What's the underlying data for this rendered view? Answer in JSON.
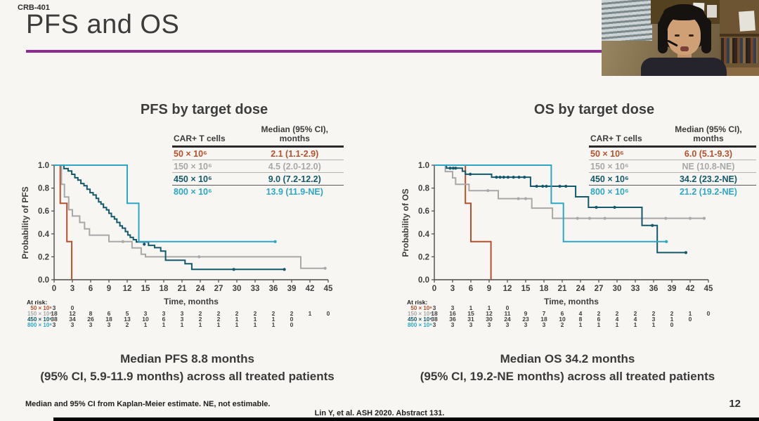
{
  "slide": {
    "code": "CRB-401",
    "title": "PFS and OS",
    "footnote": "Median and 95% CI from Kaplan-Meier estimate. NE, not estimable.",
    "citation": "Lin Y, et al. ASH 2020. Abstract 131.",
    "page_number": "12",
    "accent_color": "#8d2b92"
  },
  "charts": [
    {
      "title": "PFS by target dose",
      "legend": {
        "col1_header": "CAR+ T cells",
        "col2_header": "Median (95% CI),\nmonths",
        "rows": [
          {
            "dose": "50 × 10⁶",
            "median": "2.1 (1.1-2.9)",
            "color": "#b5512e",
            "bold": false
          },
          {
            "dose": "150 × 10⁶",
            "median": "4.5 (2.0-12.0)",
            "color": "#a8a8a8",
            "bold": false
          },
          {
            "dose": "450 × 10⁶",
            "median": "9.0 (7.2-12.2)",
            "color": "#14596b",
            "bold": true
          },
          {
            "dose": "800 × 10⁶",
            "median": "13.9 (11.9-NE)",
            "color": "#2ea7c6",
            "bold": false
          }
        ]
      },
      "summary": [
        "Median PFS 8.8 months",
        "(95% CI, 5.9-11.9 months) across all treated patients"
      ],
      "at_risk": {
        "label": "At risk:",
        "rows": [
          {
            "dose": "50 × 10⁶",
            "counts": [
              3,
              0
            ]
          },
          {
            "dose": "150 × 10⁶",
            "counts": [
              18,
              12,
              8,
              6,
              5,
              3,
              3,
              3,
              2,
              2,
              2,
              2,
              2,
              2,
              1,
              0
            ]
          },
          {
            "dose": "450 × 10⁶",
            "counts": [
              38,
              34,
              26,
              18,
              13,
              10,
              6,
              3,
              2,
              2,
              1,
              1,
              1,
              0
            ]
          },
          {
            "dose": "800 × 10⁶",
            "counts": [
              3,
              3,
              3,
              3,
              2,
              1,
              1,
              1,
              1,
              1,
              1,
              1,
              1,
              0
            ]
          }
        ]
      },
      "chart_data": {
        "type": "line",
        "subtype": "kaplan-meier-step",
        "title": "PFS by target dose",
        "xlabel": "Time, months",
        "ylabel": "Probability of PFS",
        "xlim": [
          0,
          45
        ],
        "xtick_step": 3,
        "ylim": [
          0,
          1.0
        ],
        "ytick_step": 0.2,
        "grid": false,
        "series": [
          {
            "name": "50 × 10⁶",
            "color": "#b5512e",
            "points": [
              [
                0,
                1
              ],
              [
                1.0,
                0.667
              ],
              [
                2.1,
                0.333
              ],
              [
                2.9,
                0
              ]
            ],
            "end_x": 2.9,
            "censors": []
          },
          {
            "name": "150 × 10⁶",
            "color": "#a8a8a8",
            "points": [
              [
                0,
                1
              ],
              [
                1.2,
                0.833
              ],
              [
                1.7,
                0.722
              ],
              [
                2.4,
                0.611
              ],
              [
                3.0,
                0.556
              ],
              [
                4.2,
                0.5
              ],
              [
                5.0,
                0.444
              ],
              [
                5.8,
                0.389
              ],
              [
                9.0,
                0.333
              ],
              [
                12.8,
                0.278
              ],
              [
                14.3,
                0.222
              ],
              [
                15.0,
                0.2
              ],
              [
                40.5,
                0.1
              ]
            ],
            "end_x": 44.7,
            "censors": [
              [
                11.3,
                0.333
              ],
              [
                23.8,
                0.2
              ],
              [
                44.5,
                0.1
              ]
            ]
          },
          {
            "name": "450 × 10⁶",
            "color": "#14596b",
            "points": [
              [
                0,
                1
              ],
              [
                1.6,
                0.97
              ],
              [
                2.3,
                0.95
              ],
              [
                2.9,
                0.92
              ],
              [
                3.4,
                0.89
              ],
              [
                3.9,
                0.87
              ],
              [
                4.4,
                0.84
              ],
              [
                4.9,
                0.82
              ],
              [
                5.4,
                0.79
              ],
              [
                5.9,
                0.76
              ],
              [
                6.4,
                0.74
              ],
              [
                6.9,
                0.71
              ],
              [
                7.3,
                0.68
              ],
              [
                7.7,
                0.66
              ],
              [
                8.1,
                0.63
              ],
              [
                8.6,
                0.61
              ],
              [
                9.0,
                0.58
              ],
              [
                9.4,
                0.55
              ],
              [
                9.9,
                0.53
              ],
              [
                10.3,
                0.5
              ],
              [
                10.8,
                0.47
              ],
              [
                11.2,
                0.45
              ],
              [
                11.7,
                0.42
              ],
              [
                12.1,
                0.39
              ],
              [
                12.5,
                0.37
              ],
              [
                13.0,
                0.35
              ],
              [
                13.5,
                0.33
              ],
              [
                15.5,
                0.3
              ],
              [
                16.5,
                0.28
              ],
              [
                17.5,
                0.25
              ],
              [
                18.3,
                0.17
              ],
              [
                21.5,
                0.14
              ],
              [
                22.6,
                0.09
              ]
            ],
            "end_x": 38.0,
            "censors": [
              [
                14.8,
                0.31
              ],
              [
                29.5,
                0.09
              ],
              [
                37.8,
                0.09
              ]
            ]
          },
          {
            "name": "800 × 10⁶",
            "color": "#2ea7c6",
            "points": [
              [
                0,
                1
              ],
              [
                12.0,
                0.667
              ],
              [
                13.9,
                0.333
              ]
            ],
            "end_x": 36.5,
            "censors": [
              [
                36.3,
                0.333
              ]
            ]
          }
        ]
      }
    },
    {
      "title": "OS by target dose",
      "legend": {
        "col1_header": "CAR+ T cells",
        "col2_header": "Median (95% CI),\nmonths",
        "rows": [
          {
            "dose": "50 × 10⁶",
            "median": "6.0 (5.1-9.3)",
            "color": "#b5512e",
            "bold": false
          },
          {
            "dose": "150 × 10⁶",
            "median": "NE (10.8-NE)",
            "color": "#a8a8a8",
            "bold": false
          },
          {
            "dose": "450 × 10⁶",
            "median": "34.2 (23.2-NE)",
            "color": "#14596b",
            "bold": true
          },
          {
            "dose": "800 × 10⁶",
            "median": "21.2 (19.2-NE)",
            "color": "#2ea7c6",
            "bold": false
          }
        ]
      },
      "summary": [
        "Median OS 34.2 months",
        "(95% CI, 19.2-NE months) across all treated patients"
      ],
      "at_risk": {
        "label": "At risk:",
        "rows": [
          {
            "dose": "50 × 10⁶",
            "counts": [
              3,
              3,
              1,
              1,
              0
            ]
          },
          {
            "dose": "150 × 10⁶",
            "counts": [
              18,
              16,
              15,
              12,
              11,
              9,
              7,
              6,
              4,
              2,
              2,
              2,
              2,
              2,
              1,
              0
            ]
          },
          {
            "dose": "450 × 10⁶",
            "counts": [
              38,
              36,
              31,
              30,
              24,
              23,
              18,
              10,
              8,
              6,
              4,
              4,
              3,
              1,
              0
            ]
          },
          {
            "dose": "800 × 10⁶",
            "counts": [
              3,
              3,
              3,
              3,
              3,
              3,
              3,
              2,
              1,
              1,
              1,
              1,
              1,
              0
            ]
          }
        ]
      },
      "chart_data": {
        "type": "line",
        "subtype": "kaplan-meier-step",
        "title": "OS by target dose",
        "xlabel": "Time, months",
        "ylabel": "Probability of OS",
        "xlim": [
          0,
          45
        ],
        "xtick_step": 3,
        "ylim": [
          0,
          1.0
        ],
        "ytick_step": 0.2,
        "grid": false,
        "series": [
          {
            "name": "50 × 10⁶",
            "color": "#b5512e",
            "points": [
              [
                0,
                1
              ],
              [
                5.1,
                0.667
              ],
              [
                6.0,
                0.333
              ],
              [
                9.3,
                0
              ]
            ],
            "end_x": 9.3,
            "censors": []
          },
          {
            "name": "150 × 10⁶",
            "color": "#a8a8a8",
            "points": [
              [
                0,
                1
              ],
              [
                1.8,
                0.944
              ],
              [
                3.0,
                0.889
              ],
              [
                3.5,
                0.833
              ],
              [
                5.7,
                0.778
              ],
              [
                10.5,
                0.708
              ],
              [
                16.0,
                0.625
              ],
              [
                19.4,
                0.536
              ]
            ],
            "end_x": 44.5,
            "censors": [
              [
                8.8,
                0.778
              ],
              [
                13.8,
                0.708
              ],
              [
                15.0,
                0.708
              ],
              [
                23.5,
                0.536
              ],
              [
                25.5,
                0.536
              ],
              [
                28.0,
                0.536
              ],
              [
                38.0,
                0.536
              ],
              [
                42.0,
                0.536
              ],
              [
                44.3,
                0.536
              ]
            ]
          },
          {
            "name": "450 × 10⁶",
            "color": "#14596b",
            "points": [
              [
                0,
                1
              ],
              [
                2.0,
                0.974
              ],
              [
                4.6,
                0.947
              ],
              [
                5.1,
                0.921
              ],
              [
                9.4,
                0.895
              ],
              [
                15.8,
                0.816
              ],
              [
                23.2,
                0.724
              ],
              [
                25.3,
                0.632
              ],
              [
                34.1,
                0.474
              ],
              [
                36.6,
                0.237
              ]
            ],
            "end_x": 41.5,
            "censors": [
              [
                2.6,
                0.974
              ],
              [
                3.1,
                0.974
              ],
              [
                3.5,
                0.974
              ],
              [
                5.9,
                0.921
              ],
              [
                10.2,
                0.895
              ],
              [
                10.8,
                0.895
              ],
              [
                11.4,
                0.895
              ],
              [
                12.1,
                0.895
              ],
              [
                13.0,
                0.895
              ],
              [
                13.9,
                0.895
              ],
              [
                14.8,
                0.895
              ],
              [
                16.8,
                0.816
              ],
              [
                17.8,
                0.816
              ],
              [
                18.4,
                0.816
              ],
              [
                20.6,
                0.816
              ],
              [
                21.6,
                0.816
              ],
              [
                26.6,
                0.632
              ],
              [
                29.6,
                0.632
              ],
              [
                35.8,
                0.474
              ],
              [
                41.3,
                0.237
              ]
            ]
          },
          {
            "name": "800 × 10⁶",
            "color": "#2ea7c6",
            "points": [
              [
                0,
                1
              ],
              [
                19.2,
                0.667
              ],
              [
                21.2,
                0.333
              ]
            ],
            "end_x": 38.3,
            "censors": [
              [
                38.1,
                0.333
              ]
            ]
          }
        ]
      }
    }
  ]
}
